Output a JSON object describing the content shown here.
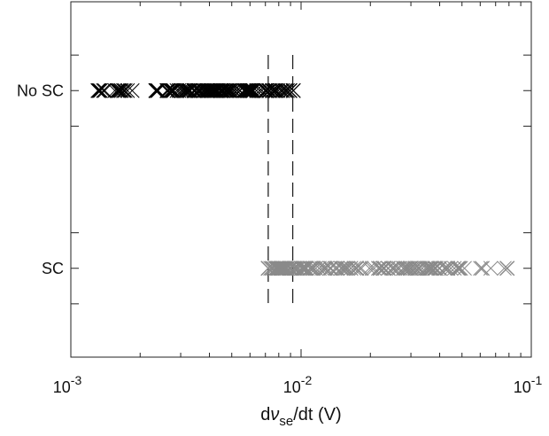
{
  "chart_data": {
    "type": "scatter",
    "title": "",
    "xlabel_parts": {
      "prefix": "d",
      "symbol": "ν",
      "subscript": "se",
      "suffix": "/dt (V)"
    },
    "ylabel": "",
    "x_scale": "log",
    "xlim": [
      0.001,
      0.1
    ],
    "x_ticks": [
      {
        "value": 0.001,
        "base": "10",
        "exp": "-3"
      },
      {
        "value": 0.01,
        "base": "10",
        "exp": "-2"
      },
      {
        "value": 0.1,
        "base": "10",
        "exp": "-1"
      }
    ],
    "y_categories": [
      "No SC",
      "SC"
    ],
    "y_level_values": {
      "No SC": 1,
      "SC": 0
    },
    "ylim": [
      -0.5,
      1.5
    ],
    "y_minor_ticks": [
      -0.2,
      0.2,
      0.8,
      1.2
    ],
    "grid": false,
    "marker": "x",
    "series": [
      {
        "category": "No SC",
        "color": "#000000",
        "clusters": [
          {
            "from": 0.00122,
            "to": 0.00185,
            "count": 18
          },
          {
            "from": 0.00232,
            "to": 0.0093,
            "count": 150
          }
        ]
      },
      {
        "category": "SC",
        "color": "#8a8a8a",
        "clusters": [
          {
            "from": 0.0071,
            "to": 0.0105,
            "count": 60
          },
          {
            "from": 0.0105,
            "to": 0.05,
            "count": 110
          },
          {
            "from": 0.05,
            "to": 0.079,
            "count": 8
          }
        ]
      }
    ],
    "thresholds": [
      0.0072,
      0.0092
    ]
  }
}
